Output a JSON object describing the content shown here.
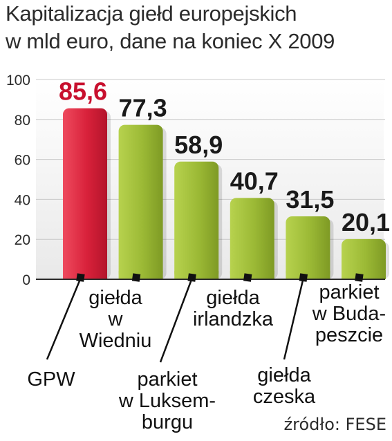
{
  "title_line1": "Kapitalizacja giełd europejskich",
  "title_line2": "w mld euro, dane na koniec X 2009",
  "source": "źródło: FESE",
  "colors": {
    "highlight": "#d8213a",
    "bar": "#9bb935",
    "value_text": "#1a1a1a",
    "highlight_text": "#c8102e",
    "axis": "#2b2b2b",
    "grid": "#c8c8c8"
  },
  "chart_data": {
    "type": "bar",
    "title": "Kapitalizacja giełd europejskich w mld euro, dane na koniec X 2009",
    "categories": [
      [
        "GPW"
      ],
      [
        "giełda",
        "w",
        "Wiedniu"
      ],
      [
        "parkiet",
        "w Luksem-",
        "burgu"
      ],
      [
        "giełda",
        "irlandzka"
      ],
      [
        "giełda",
        "czeska"
      ],
      [
        "parkiet",
        "w Buda-",
        "peszcie"
      ]
    ],
    "values": [
      85.6,
      77.3,
      58.9,
      40.7,
      31.5,
      20.1
    ],
    "value_labels": [
      "85,6",
      "77,3",
      "58,9",
      "40,7",
      "31,5",
      "20,1"
    ],
    "highlight_index": 0,
    "ylim": [
      0,
      100
    ],
    "yticks": [
      0,
      20,
      40,
      60,
      80,
      100
    ],
    "grid": true,
    "legend": "none"
  }
}
